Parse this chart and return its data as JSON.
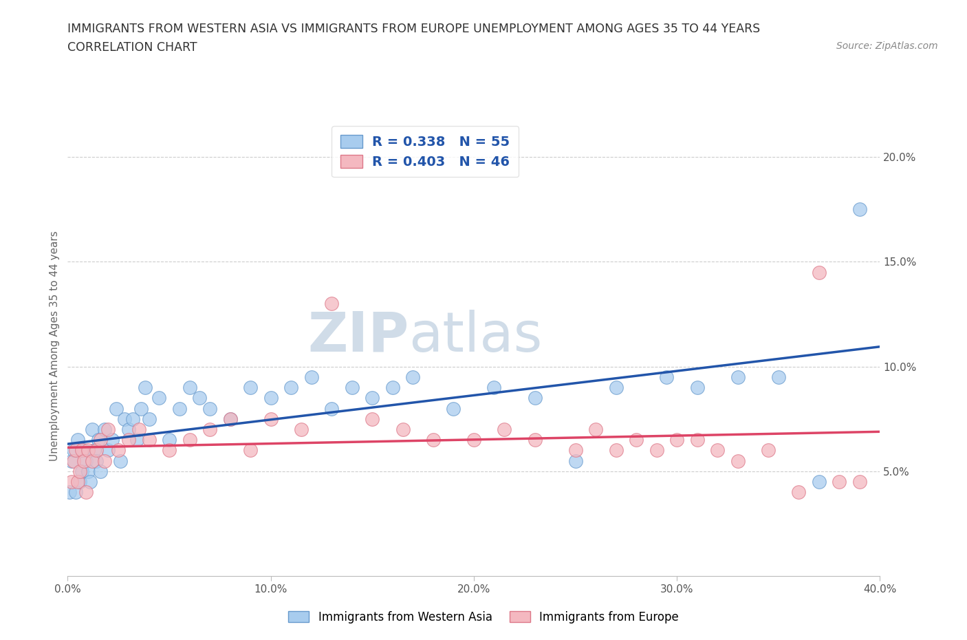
{
  "title_line1": "IMMIGRANTS FROM WESTERN ASIA VS IMMIGRANTS FROM EUROPE UNEMPLOYMENT AMONG AGES 35 TO 44 YEARS",
  "title_line2": "CORRELATION CHART",
  "source": "Source: ZipAtlas.com",
  "ylabel": "Unemployment Among Ages 35 to 44 years",
  "xlim": [
    0.0,
    0.4
  ],
  "ylim": [
    0.0,
    0.22
  ],
  "xtick_values": [
    0.0,
    0.1,
    0.2,
    0.3,
    0.4
  ],
  "xtick_labels": [
    "0.0%",
    "10.0%",
    "20.0%",
    "30.0%",
    "40.0%"
  ],
  "ytick_values": [
    0.05,
    0.1,
    0.15,
    0.2
  ],
  "ytick_labels": [
    "5.0%",
    "10.0%",
    "15.0%",
    "20.0%"
  ],
  "blue_color": "#A8CCEE",
  "blue_edge": "#6699CC",
  "blue_line": "#2255AA",
  "pink_color": "#F4B8C0",
  "pink_edge": "#DD7788",
  "pink_line": "#DD4466",
  "legend_text_color": "#2255AA",
  "watermark_zip": "ZIP",
  "watermark_atlas": "atlas",
  "watermark_color": "#D0DCE8",
  "R_blue": 0.338,
  "N_blue": 55,
  "R_pink": 0.403,
  "N_pink": 46,
  "blue_x": [
    0.001,
    0.002,
    0.003,
    0.004,
    0.005,
    0.006,
    0.007,
    0.008,
    0.009,
    0.01,
    0.011,
    0.012,
    0.013,
    0.014,
    0.015,
    0.016,
    0.018,
    0.02,
    0.022,
    0.024,
    0.026,
    0.028,
    0.03,
    0.032,
    0.034,
    0.036,
    0.038,
    0.04,
    0.045,
    0.05,
    0.055,
    0.06,
    0.065,
    0.07,
    0.08,
    0.09,
    0.1,
    0.11,
    0.12,
    0.13,
    0.14,
    0.15,
    0.16,
    0.17,
    0.19,
    0.21,
    0.23,
    0.25,
    0.27,
    0.295,
    0.31,
    0.33,
    0.35,
    0.37,
    0.39
  ],
  "blue_y": [
    0.04,
    0.055,
    0.06,
    0.04,
    0.065,
    0.045,
    0.05,
    0.06,
    0.055,
    0.05,
    0.045,
    0.07,
    0.06,
    0.055,
    0.065,
    0.05,
    0.07,
    0.06,
    0.065,
    0.08,
    0.055,
    0.075,
    0.07,
    0.075,
    0.065,
    0.08,
    0.09,
    0.075,
    0.085,
    0.065,
    0.08,
    0.09,
    0.085,
    0.08,
    0.075,
    0.09,
    0.085,
    0.09,
    0.095,
    0.08,
    0.09,
    0.085,
    0.09,
    0.095,
    0.08,
    0.09,
    0.085,
    0.055,
    0.09,
    0.095,
    0.09,
    0.095,
    0.095,
    0.045,
    0.175
  ],
  "pink_x": [
    0.002,
    0.003,
    0.004,
    0.005,
    0.006,
    0.007,
    0.008,
    0.009,
    0.01,
    0.012,
    0.014,
    0.016,
    0.018,
    0.02,
    0.025,
    0.03,
    0.035,
    0.04,
    0.05,
    0.06,
    0.07,
    0.08,
    0.09,
    0.1,
    0.115,
    0.13,
    0.15,
    0.165,
    0.18,
    0.2,
    0.215,
    0.23,
    0.25,
    0.26,
    0.27,
    0.28,
    0.29,
    0.3,
    0.31,
    0.32,
    0.33,
    0.345,
    0.36,
    0.37,
    0.38,
    0.39
  ],
  "pink_y": [
    0.045,
    0.055,
    0.06,
    0.045,
    0.05,
    0.06,
    0.055,
    0.04,
    0.06,
    0.055,
    0.06,
    0.065,
    0.055,
    0.07,
    0.06,
    0.065,
    0.07,
    0.065,
    0.06,
    0.065,
    0.07,
    0.075,
    0.06,
    0.075,
    0.07,
    0.13,
    0.075,
    0.07,
    0.065,
    0.065,
    0.07,
    0.065,
    0.06,
    0.07,
    0.06,
    0.065,
    0.06,
    0.065,
    0.065,
    0.06,
    0.055,
    0.06,
    0.04,
    0.145,
    0.045,
    0.045
  ],
  "grid_color": "#CCCCCC",
  "background_color": "#FFFFFF",
  "title_fontsize": 12.5,
  "tick_fontsize": 11,
  "legend_fontsize": 13
}
